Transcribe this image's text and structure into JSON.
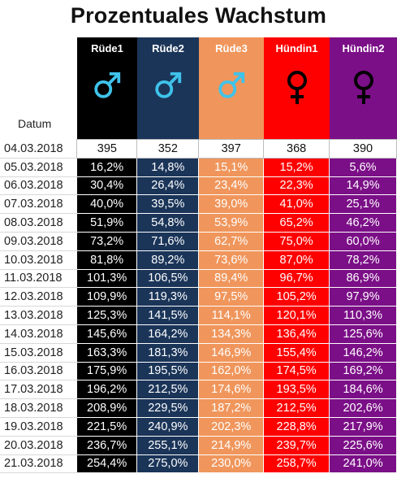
{
  "title": "Prozentuales Wachstum",
  "datum_label": "Datum",
  "colors": {
    "rude1": "#000000",
    "rude2": "#1b3559",
    "rude3": "#f0965c",
    "hundin1": "#fe0000",
    "hundin2": "#7b0f87",
    "male_symbol": "#3fc3ea",
    "female_symbol": "#000000"
  },
  "columns": [
    {
      "label": "Rüde1",
      "icon": "male-symbol-icon"
    },
    {
      "label": "Rüde2",
      "icon": "male-symbol-icon"
    },
    {
      "label": "Rüde3",
      "icon": "male-symbol-icon"
    },
    {
      "label": "Hündin1",
      "icon": "female-symbol-icon"
    },
    {
      "label": "Hündin2",
      "icon": "female-symbol-icon"
    }
  ],
  "rows": [
    {
      "date": "04.03.2018",
      "values": [
        "395",
        "352",
        "397",
        "368",
        "390"
      ]
    },
    {
      "date": "05.03.2018",
      "values": [
        "16,2%",
        "14,8%",
        "15,1%",
        "15,2%",
        "5,6%"
      ]
    },
    {
      "date": "06.03.2018",
      "values": [
        "30,4%",
        "26,4%",
        "23,4%",
        "22,3%",
        "14,9%"
      ]
    },
    {
      "date": "07.03.2018",
      "values": [
        "40,0%",
        "39,5%",
        "39,0%",
        "41,0%",
        "25,1%"
      ]
    },
    {
      "date": "08.03.2018",
      "values": [
        "51,9%",
        "54,8%",
        "53,9%",
        "65,2%",
        "46,2%"
      ]
    },
    {
      "date": "09.03.2018",
      "values": [
        "73,2%",
        "71,6%",
        "62,7%",
        "75,0%",
        "60,0%"
      ]
    },
    {
      "date": "10.03.2018",
      "values": [
        "81,8%",
        "89,2%",
        "73,6%",
        "87,0%",
        "78,2%"
      ]
    },
    {
      "date": "11.03.2018",
      "values": [
        "101,3%",
        "106,5%",
        "89,4%",
        "96,7%",
        "86,9%"
      ]
    },
    {
      "date": "12.03.2018",
      "values": [
        "109,9%",
        "119,3%",
        "97,5%",
        "105,2%",
        "97,9%"
      ]
    },
    {
      "date": "13.03.2018",
      "values": [
        "125,3%",
        "141,5%",
        "114,1%",
        "120,1%",
        "110,3%"
      ]
    },
    {
      "date": "14.03.2018",
      "values": [
        "145,6%",
        "164,2%",
        "134,3%",
        "136,4%",
        "125,6%"
      ]
    },
    {
      "date": "15.03.2018",
      "values": [
        "163,3%",
        "181,3%",
        "146,9%",
        "155,4%",
        "146,2%"
      ]
    },
    {
      "date": "16.03.2018",
      "values": [
        "175,9%",
        "195,5%",
        "162,0%",
        "174,5%",
        "169,2%"
      ]
    },
    {
      "date": "17.03.2018",
      "values": [
        "196,2%",
        "212,5%",
        "174,6%",
        "193,5%",
        "184,6%"
      ]
    },
    {
      "date": "18.03.2018",
      "values": [
        "208,9%",
        "229,5%",
        "187,2%",
        "212,5%",
        "202,6%"
      ]
    },
    {
      "date": "19.03.2018",
      "values": [
        "221,5%",
        "240,9%",
        "202,3%",
        "228,8%",
        "217,9%"
      ]
    },
    {
      "date": "20.03.2018",
      "values": [
        "236,7%",
        "255,1%",
        "214,9%",
        "239,7%",
        "225,6%"
      ]
    },
    {
      "date": "21.03.2018",
      "values": [
        "254,4%",
        "275,0%",
        "230,0%",
        "258,7%",
        "241,0%"
      ]
    }
  ]
}
